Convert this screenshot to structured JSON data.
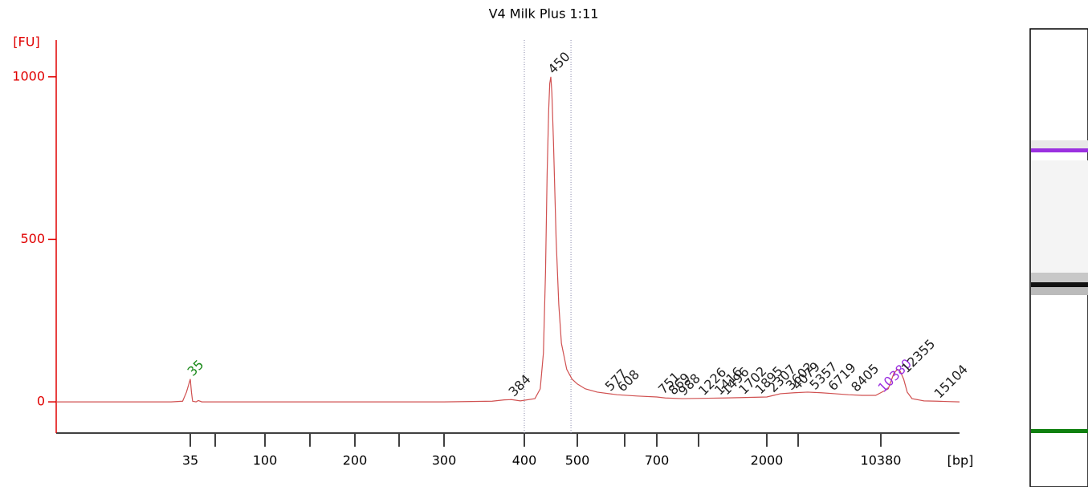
{
  "chart_data": {
    "type": "line",
    "title": "V4 Milk Plus 1:11",
    "ylabel": "[FU]",
    "xlabel": "[bp]",
    "color": "#d05050",
    "axis_color": "#e00000",
    "ylim": [
      -96,
      1113
    ],
    "yticks": [
      0,
      500,
      1000
    ],
    "xlim": [
      0,
      17000
    ],
    "xticks": [
      35,
      100,
      200,
      300,
      400,
      500,
      700,
      2000,
      10380
    ],
    "region": [
      400,
      488
    ],
    "x": [
      0,
      30,
      33,
      34,
      35,
      36,
      37,
      40,
      42,
      45,
      50,
      100,
      200,
      300,
      360,
      375,
      384,
      395,
      420,
      430,
      436,
      440,
      443,
      446,
      448,
      450,
      452,
      455,
      460,
      465,
      470,
      480,
      490,
      500,
      520,
      550,
      600,
      650,
      700,
      800,
      1000,
      1500,
      2000,
      2500,
      3000,
      4000,
      5000,
      6000,
      7000,
      8000,
      9000,
      10000,
      11000,
      11500,
      11800,
      12000,
      12300,
      12600,
      13000,
      14000,
      15104,
      16000,
      17000
    ],
    "values": [
      0,
      0,
      2,
      30,
      70,
      30,
      2,
      0,
      4,
      0,
      0,
      0,
      0,
      0,
      2,
      6,
      7,
      3,
      10,
      40,
      150,
      400,
      700,
      900,
      980,
      1000,
      950,
      800,
      500,
      300,
      180,
      100,
      70,
      55,
      40,
      30,
      22,
      18,
      15,
      12,
      10,
      12,
      15,
      20,
      25,
      28,
      30,
      28,
      25,
      22,
      20,
      20,
      40,
      90,
      100,
      95,
      70,
      30,
      10,
      3,
      2,
      1,
      0
    ],
    "peaks": [
      {
        "x": 35,
        "y": 70,
        "color": "#1a8a1a"
      },
      {
        "x": 384,
        "y": 7,
        "color": "#222222"
      },
      {
        "x": 450,
        "y": 1000,
        "color": "#222222"
      },
      {
        "x": 577,
        "y": 24,
        "color": "#222222"
      },
      {
        "x": 608,
        "y": 22,
        "color": "#222222"
      },
      {
        "x": 751,
        "y": 15,
        "color": "#222222"
      },
      {
        "x": 869,
        "y": 12,
        "color": "#222222"
      },
      {
        "x": 988,
        "y": 10,
        "color": "#222222"
      },
      {
        "x": 1226,
        "y": 11,
        "color": "#222222"
      },
      {
        "x": 1416,
        "y": 12,
        "color": "#222222"
      },
      {
        "x": 1496,
        "y": 12,
        "color": "#222222"
      },
      {
        "x": 1702,
        "y": 14,
        "color": "#222222"
      },
      {
        "x": 1895,
        "y": 15,
        "color": "#222222"
      },
      {
        "x": 2307,
        "y": 20,
        "color": "#222222"
      },
      {
        "x": 3602,
        "y": 27,
        "color": "#222222"
      },
      {
        "x": 4079,
        "y": 28,
        "color": "#222222"
      },
      {
        "x": 5357,
        "y": 28,
        "color": "#222222"
      },
      {
        "x": 6719,
        "y": 25,
        "color": "#222222"
      },
      {
        "x": 8405,
        "y": 22,
        "color": "#222222"
      },
      {
        "x": 10380,
        "y": 20,
        "color": "#9b30e0"
      },
      {
        "x": 12355,
        "y": 80,
        "color": "#222222"
      },
      {
        "x": 15104,
        "y": 2,
        "color": "#222222"
      }
    ]
  }
}
